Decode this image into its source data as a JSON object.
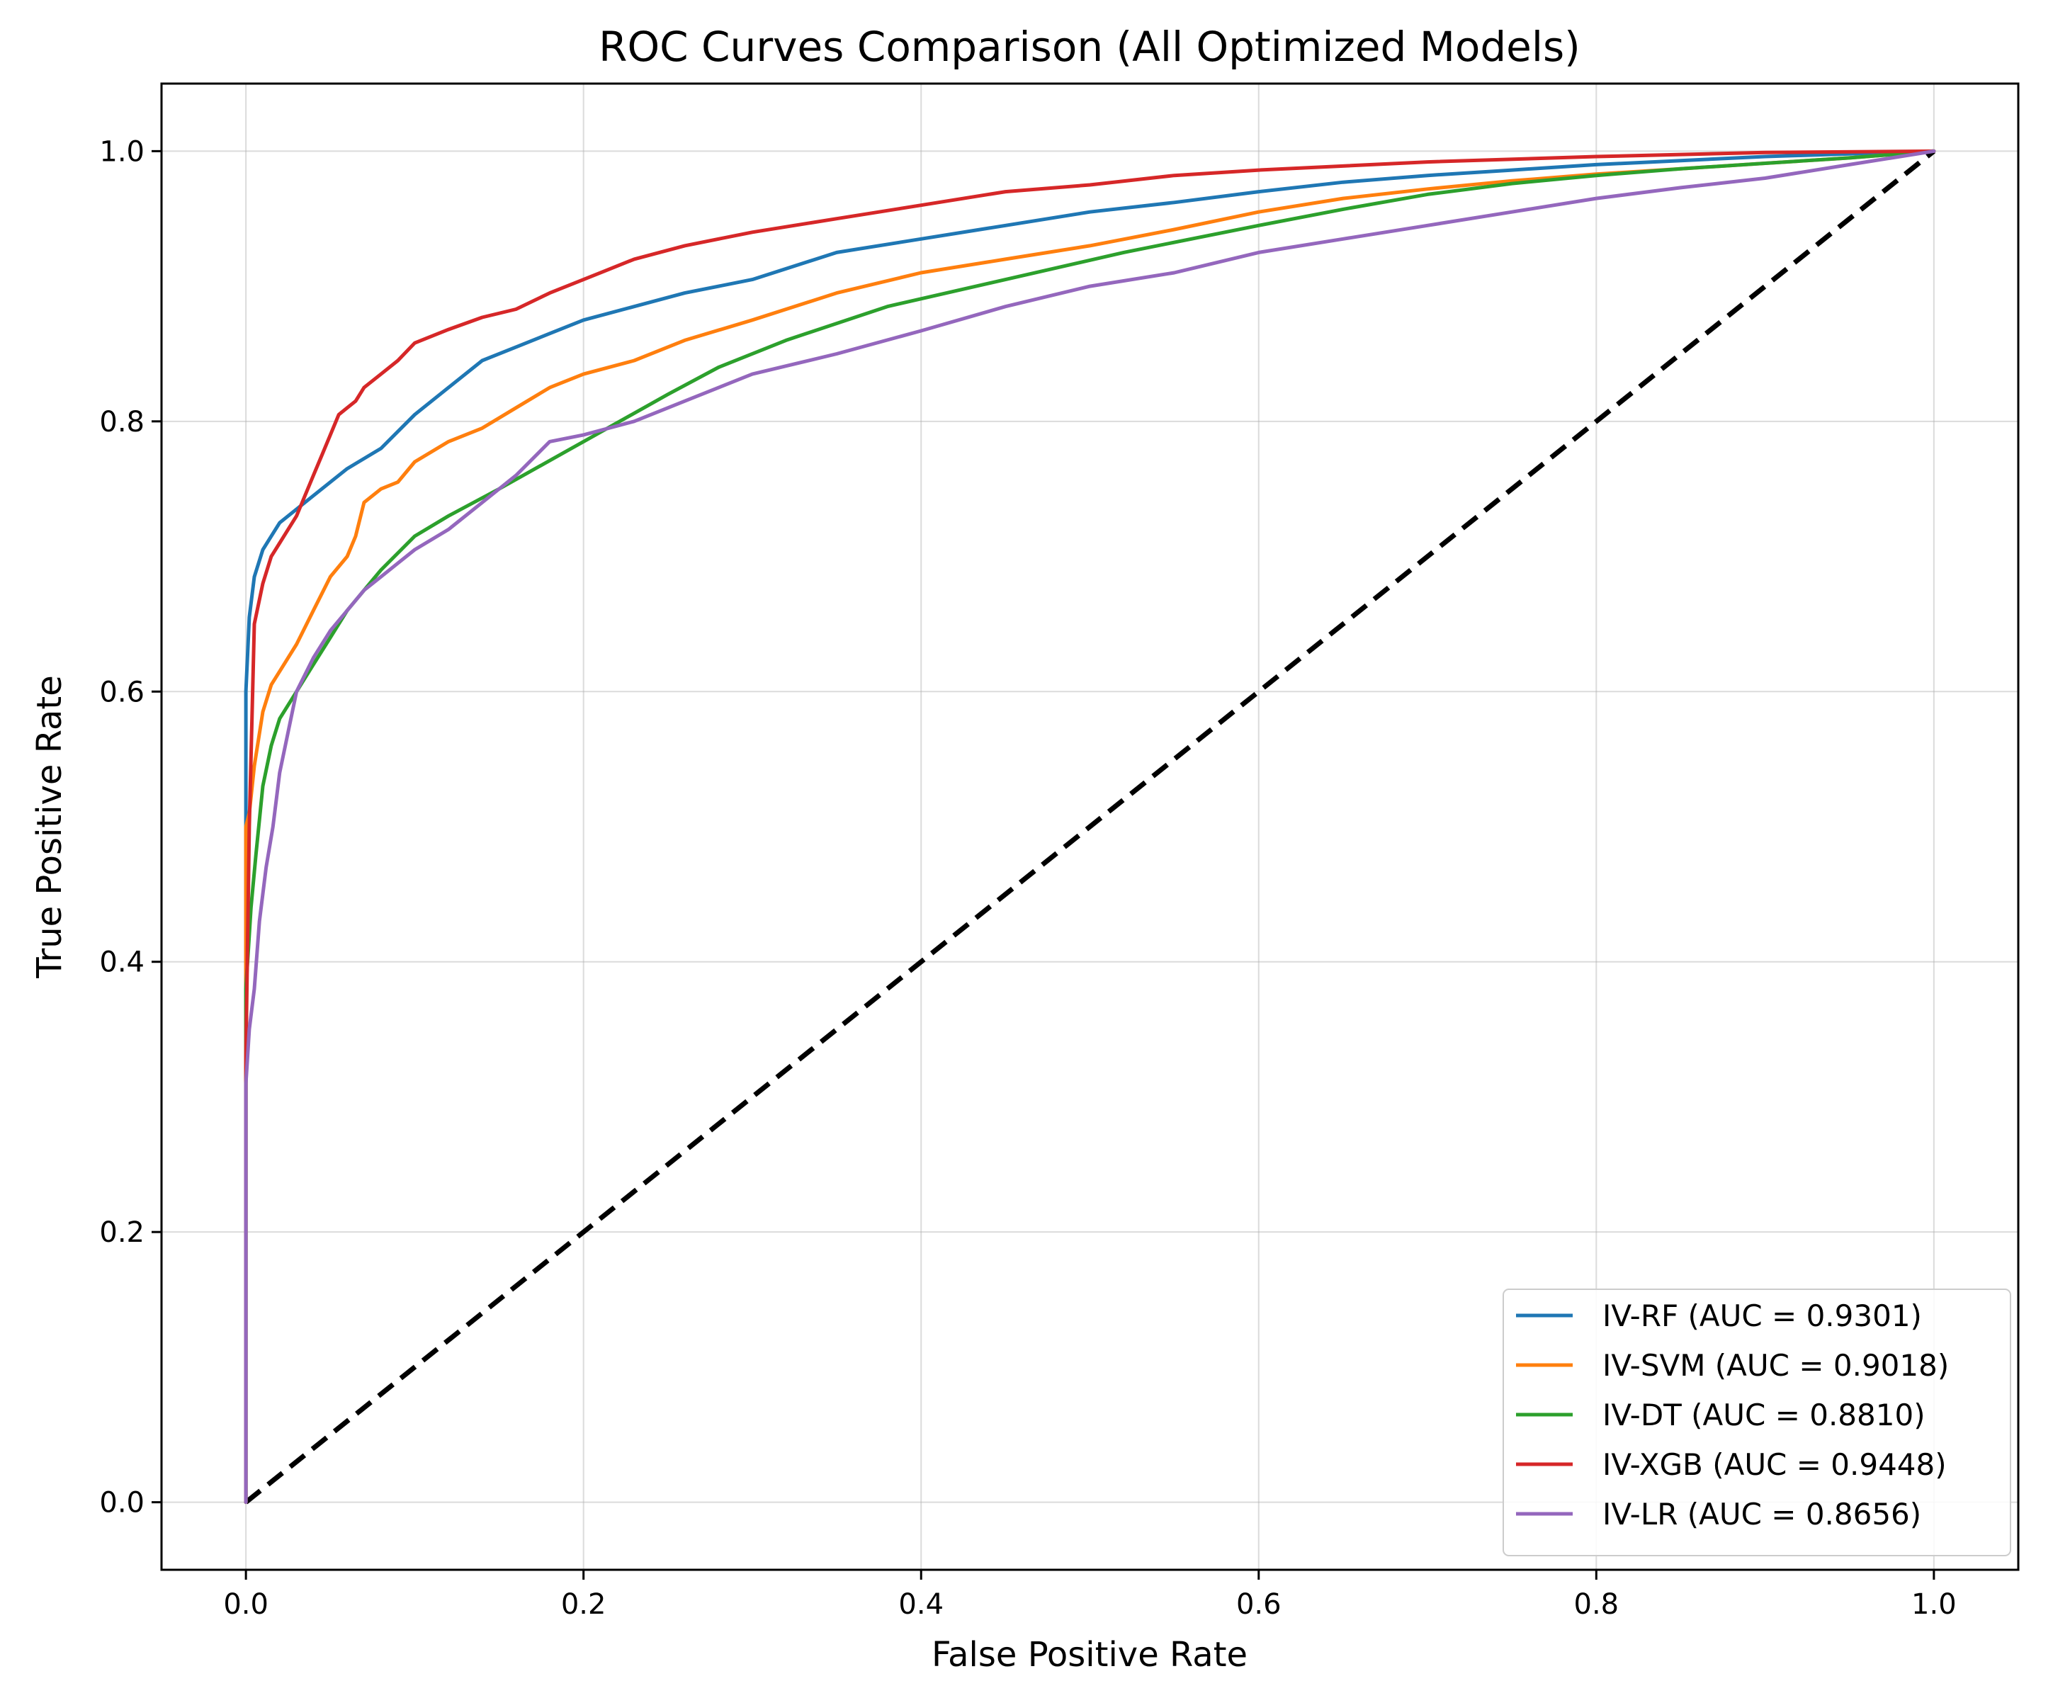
{
  "chart_data": {
    "type": "line",
    "title": "ROC Curves Comparison (All Optimized Models)",
    "xlabel": "False Positive Rate",
    "ylabel": "True Positive Rate",
    "xlim": [
      -0.05,
      1.05
    ],
    "ylim": [
      -0.05,
      1.05
    ],
    "grid": true,
    "legend_position": "lower-right",
    "x_ticks": [
      0.0,
      0.2,
      0.4,
      0.6,
      0.8,
      1.0
    ],
    "y_ticks": [
      0.0,
      0.2,
      0.4,
      0.6,
      0.8,
      1.0
    ],
    "x_tick_labels": [
      "0.0",
      "0.2",
      "0.4",
      "0.6",
      "0.8",
      "1.0"
    ],
    "y_tick_labels": [
      "0.0",
      "0.2",
      "0.4",
      "0.6",
      "0.8",
      "1.0"
    ],
    "diagonal": {
      "name": "chance",
      "color": "#000000",
      "x": [
        0,
        1
      ],
      "y": [
        0,
        1
      ]
    },
    "series": [
      {
        "name": "IV-RF",
        "label": "IV-RF (AUC = 0.9301)",
        "auc": 0.9301,
        "color": "#1f77b4",
        "x": [
          0,
          0.0,
          0.002,
          0.005,
          0.01,
          0.015,
          0.02,
          0.03,
          0.04,
          0.05,
          0.06,
          0.08,
          0.1,
          0.12,
          0.14,
          0.16,
          0.18,
          0.2,
          0.23,
          0.26,
          0.3,
          0.35,
          0.4,
          0.45,
          0.5,
          0.55,
          0.6,
          0.65,
          0.7,
          0.75,
          0.8,
          0.85,
          0.9,
          0.95,
          1.0
        ],
        "y": [
          0,
          0.6,
          0.655,
          0.685,
          0.705,
          0.715,
          0.725,
          0.735,
          0.745,
          0.755,
          0.765,
          0.78,
          0.805,
          0.825,
          0.845,
          0.855,
          0.865,
          0.875,
          0.885,
          0.895,
          0.905,
          0.925,
          0.935,
          0.945,
          0.955,
          0.962,
          0.97,
          0.977,
          0.982,
          0.986,
          0.99,
          0.993,
          0.996,
          0.998,
          1.0
        ]
      },
      {
        "name": "IV-SVM",
        "label": "IV-SVM (AUC = 0.9018)",
        "auc": 0.9018,
        "color": "#ff7f0e",
        "x": [
          0,
          0.0,
          0.002,
          0.005,
          0.01,
          0.015,
          0.02,
          0.03,
          0.04,
          0.05,
          0.06,
          0.065,
          0.07,
          0.08,
          0.09,
          0.1,
          0.12,
          0.14,
          0.16,
          0.18,
          0.2,
          0.23,
          0.26,
          0.3,
          0.35,
          0.4,
          0.45,
          0.5,
          0.55,
          0.6,
          0.65,
          0.7,
          0.75,
          0.8,
          0.85,
          0.9,
          0.95,
          1.0
        ],
        "y": [
          0,
          0.5,
          0.51,
          0.545,
          0.585,
          0.605,
          0.615,
          0.635,
          0.66,
          0.685,
          0.7,
          0.715,
          0.74,
          0.75,
          0.755,
          0.77,
          0.785,
          0.795,
          0.81,
          0.825,
          0.835,
          0.845,
          0.86,
          0.875,
          0.895,
          0.91,
          0.92,
          0.93,
          0.942,
          0.955,
          0.965,
          0.972,
          0.978,
          0.983,
          0.987,
          0.991,
          0.995,
          1.0
        ]
      },
      {
        "name": "IV-DT",
        "label": "IV-DT (AUC = 0.8810)",
        "auc": 0.881,
        "color": "#2ca02c",
        "x": [
          0,
          0.0,
          0.003,
          0.006,
          0.01,
          0.015,
          0.02,
          0.03,
          0.04,
          0.05,
          0.06,
          0.08,
          0.1,
          0.12,
          0.15,
          0.2,
          0.25,
          0.28,
          0.32,
          0.38,
          0.45,
          0.52,
          0.6,
          0.65,
          0.7,
          0.75,
          0.8,
          0.85,
          0.9,
          0.95,
          1.0
        ],
        "y": [
          0,
          0.38,
          0.44,
          0.48,
          0.53,
          0.56,
          0.58,
          0.6,
          0.62,
          0.64,
          0.66,
          0.69,
          0.715,
          0.73,
          0.75,
          0.785,
          0.82,
          0.84,
          0.86,
          0.885,
          0.905,
          0.925,
          0.945,
          0.957,
          0.968,
          0.976,
          0.982,
          0.987,
          0.991,
          0.995,
          1.0
        ]
      },
      {
        "name": "IV-XGB",
        "label": "IV-XGB (AUC = 0.9448)",
        "auc": 0.9448,
        "color": "#d62728",
        "x": [
          0,
          0.0,
          0.002,
          0.005,
          0.01,
          0.015,
          0.02,
          0.03,
          0.035,
          0.04,
          0.045,
          0.05,
          0.055,
          0.06,
          0.065,
          0.07,
          0.08,
          0.09,
          0.1,
          0.12,
          0.14,
          0.16,
          0.18,
          0.2,
          0.23,
          0.26,
          0.3,
          0.35,
          0.4,
          0.45,
          0.5,
          0.55,
          0.6,
          0.7,
          0.8,
          0.9,
          1.0
        ],
        "y": [
          0,
          0.33,
          0.5,
          0.65,
          0.68,
          0.7,
          0.71,
          0.73,
          0.745,
          0.76,
          0.775,
          0.79,
          0.805,
          0.81,
          0.815,
          0.825,
          0.835,
          0.845,
          0.858,
          0.868,
          0.877,
          0.883,
          0.895,
          0.905,
          0.92,
          0.93,
          0.94,
          0.95,
          0.96,
          0.97,
          0.975,
          0.982,
          0.986,
          0.992,
          0.996,
          0.999,
          1.0
        ]
      },
      {
        "name": "IV-LR",
        "label": "IV-LR (AUC = 0.8656)",
        "auc": 0.8656,
        "color": "#9467bd",
        "x": [
          0,
          0.0,
          0.002,
          0.005,
          0.008,
          0.012,
          0.016,
          0.02,
          0.025,
          0.03,
          0.04,
          0.05,
          0.06,
          0.07,
          0.08,
          0.09,
          0.1,
          0.12,
          0.14,
          0.16,
          0.18,
          0.2,
          0.23,
          0.26,
          0.3,
          0.35,
          0.4,
          0.45,
          0.5,
          0.55,
          0.6,
          0.65,
          0.7,
          0.75,
          0.8,
          0.85,
          0.9,
          0.95,
          1.0
        ],
        "y": [
          0,
          0.31,
          0.35,
          0.38,
          0.43,
          0.47,
          0.5,
          0.54,
          0.57,
          0.6,
          0.625,
          0.645,
          0.66,
          0.675,
          0.685,
          0.695,
          0.705,
          0.72,
          0.74,
          0.76,
          0.785,
          0.79,
          0.8,
          0.815,
          0.835,
          0.85,
          0.867,
          0.885,
          0.9,
          0.91,
          0.925,
          0.935,
          0.945,
          0.955,
          0.965,
          0.973,
          0.98,
          0.99,
          1.0
        ]
      }
    ]
  }
}
